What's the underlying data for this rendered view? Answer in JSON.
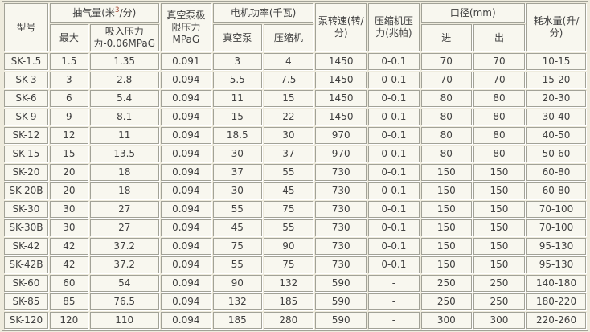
{
  "colors": {
    "page_bg": "#EEEBDD",
    "cell_bg": "#F8F7EF",
    "grid_line": "#A2A297",
    "grid_highlight": "#FFFFFF",
    "text": "#404040",
    "superscript": "#A34B38"
  },
  "table": {
    "header": {
      "model": "型号",
      "pumping_capacity": {
        "label_pre": "抽气量(米",
        "sup": "3",
        "label_post": "/分)",
        "max": "最大",
        "suction_pressure": "吸入压力为-0.06MPaG"
      },
      "ultimate_pressure": "真空泵极限压力MPaG",
      "motor_power": {
        "label": "电机功率(千瓦)",
        "vacuum_pump": "真空泵",
        "compressor": "压缩机"
      },
      "pump_speed": "泵转速(转/分)",
      "compressor_pressure": "压缩机压力(兆帕)",
      "diameter": {
        "label": "口径(mm)",
        "inlet": "进",
        "outlet": "出"
      },
      "water_consumption": "耗水量(升/分)"
    },
    "rows": [
      [
        "SK-1.5",
        "1.5",
        "1.35",
        "0.091",
        "3",
        "4",
        "1450",
        "0-0.1",
        "70",
        "70",
        "10-15"
      ],
      [
        "SK-3",
        "3",
        "2.8",
        "0.094",
        "5.5",
        "7.5",
        "1450",
        "0-0.1",
        "70",
        "70",
        "15-20"
      ],
      [
        "SK-6",
        "6",
        "5.4",
        "0.094",
        "11",
        "15",
        "1450",
        "0-0.1",
        "80",
        "80",
        "20-30"
      ],
      [
        "SK-9",
        "9",
        "8.1",
        "0.094",
        "15",
        "22",
        "1450",
        "0-0.1",
        "80",
        "80",
        "30-40"
      ],
      [
        "SK-12",
        "12",
        "11",
        "0.094",
        "18.5",
        "30",
        "970",
        "0-0.1",
        "80",
        "80",
        "40-50"
      ],
      [
        "SK-15",
        "15",
        "13.5",
        "0.094",
        "30",
        "37",
        "970",
        "0-0.1",
        "80",
        "80",
        "50-60"
      ],
      [
        "SK-20",
        "20",
        "18",
        "0.094",
        "37",
        "55",
        "730",
        "0-0.1",
        "150",
        "150",
        "60-80"
      ],
      [
        "SK-20B",
        "20",
        "18",
        "0.094",
        "30",
        "45",
        "730",
        "0-0.1",
        "150",
        "150",
        "60-80"
      ],
      [
        "SK-30",
        "30",
        "27",
        "0.094",
        "55",
        "75",
        "730",
        "0-0.1",
        "150",
        "150",
        "70-100"
      ],
      [
        "SK-30B",
        "30",
        "27",
        "0.094",
        "45",
        "55",
        "730",
        "0-0.1",
        "150",
        "150",
        "70-100"
      ],
      [
        "SK-42",
        "42",
        "37.2",
        "0.094",
        "75",
        "90",
        "730",
        "0-0.1",
        "150",
        "150",
        "95-130"
      ],
      [
        "SK-42B",
        "42",
        "37.2",
        "0.094",
        "55",
        "75",
        "730",
        "0-0.1",
        "150",
        "150",
        "95-130"
      ],
      [
        "SK-60",
        "60",
        "54",
        "0.094",
        "90",
        "132",
        "590",
        "-",
        "250",
        "250",
        "140-180"
      ],
      [
        "SK-85",
        "85",
        "76.5",
        "0.094",
        "132",
        "185",
        "590",
        "-",
        "250",
        "250",
        "180-220"
      ],
      [
        "SK-120",
        "120",
        "110",
        "0.094",
        "185",
        "280",
        "590",
        "-",
        "300",
        "300",
        "220-260"
      ]
    ]
  }
}
